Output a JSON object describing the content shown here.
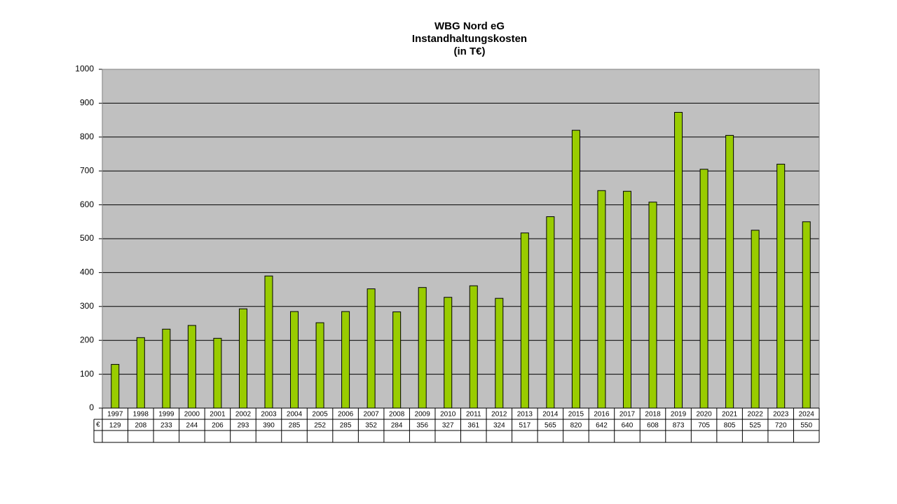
{
  "chart_data": {
    "type": "bar",
    "title": [
      "WBG Nord eG",
      "Instandhaltungskosten",
      "(in T€)"
    ],
    "categories": [
      "1997",
      "1998",
      "1999",
      "2000",
      "2001",
      "2002",
      "2003",
      "2004",
      "2005",
      "2006",
      "2007",
      "2008",
      "2009",
      "2010",
      "2011",
      "2012",
      "2013",
      "2014",
      "2015",
      "2016",
      "2017",
      "2018",
      "2019",
      "2020",
      "2021",
      "2022",
      "2023",
      "2024"
    ],
    "series": [
      {
        "name": "€",
        "color": "#99cc00",
        "values": [
          129,
          208,
          233,
          244,
          206,
          293,
          390,
          285,
          252,
          285,
          352,
          284,
          356,
          327,
          361,
          324,
          517,
          565,
          820,
          642,
          640,
          608,
          873,
          705,
          805,
          525,
          720,
          550
        ]
      }
    ],
    "ylim": [
      0,
      1000
    ],
    "yticks": [
      0,
      100,
      200,
      300,
      400,
      500,
      600,
      700,
      800,
      900,
      1000
    ],
    "grid": true
  }
}
